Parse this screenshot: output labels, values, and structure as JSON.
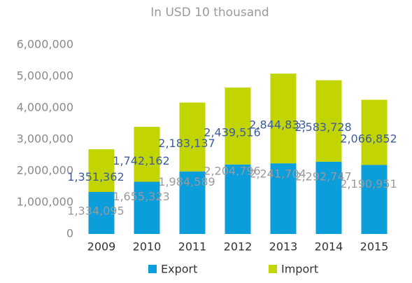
{
  "chart_data": {
    "type": "stacked_bar",
    "subtitle": "In USD 10 thousand",
    "categories": [
      "2009",
      "2010",
      "2011",
      "2012",
      "2013",
      "2014",
      "2015"
    ],
    "series": [
      {
        "name": "Export",
        "color": "#0b9edb",
        "label_color": "#9a9a9a",
        "values": [
          1334095,
          1655323,
          1984589,
          2204796,
          2241704,
          2292747,
          2190951
        ],
        "value_labels": [
          "1,334,095",
          "1,655,323",
          "1,984,589",
          "2,204,796",
          "2,241,704",
          "2,292,747",
          "2,190,951"
        ]
      },
      {
        "name": "Import",
        "color": "#c2d500",
        "label_color": "#3d5c9c",
        "values": [
          1351362,
          1742162,
          2183137,
          2439516,
          2844833,
          2583728,
          2066852
        ],
        "value_labels": [
          "1,351,362",
          "1,742,162",
          "2,183,137",
          "2,439,516",
          "2,844,833",
          "2,583,728",
          "2,066,852"
        ]
      }
    ],
    "ylim": [
      0,
      6000000
    ],
    "yticks": [
      0,
      {
        "value": 1000000,
        "label": "1,000,000"
      },
      {
        "value": 2000000,
        "label": "2,000,000"
      },
      {
        "value": 3000000,
        "label": "3,000,000"
      },
      {
        "value": 4000000,
        "label": "4,000,000"
      },
      {
        "value": 5000000,
        "label": "5,000,000"
      },
      {
        "value": 6000000,
        "label": "6,000,000"
      }
    ],
    "grid": false,
    "legend": "bottom"
  }
}
